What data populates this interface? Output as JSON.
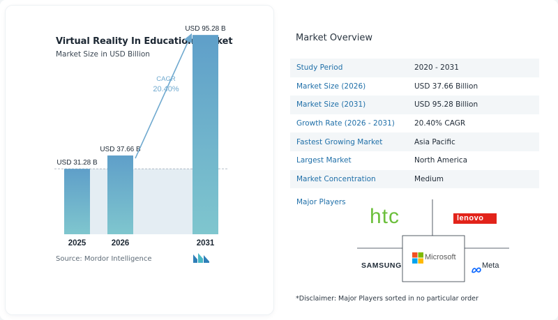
{
  "chart_data": {
    "type": "bar",
    "title": "Virtual Reality In Education Market",
    "subtitle": "Market Size in USD Billion",
    "categories": [
      "2025",
      "2026",
      "2031"
    ],
    "values": [
      31.28,
      37.66,
      95.28
    ],
    "data_labels": [
      "USD 31.28 B",
      "USD 37.66 B",
      "USD 95.28 B"
    ],
    "ylim": [
      0,
      100
    ],
    "grid": false,
    "annotation": {
      "label": "CAGR",
      "value": "20.40%"
    },
    "colors": {
      "bar_top": "#5f9fc9",
      "bar_bottom": "#7fc6ce",
      "baseline_band": "#e4edf3",
      "arrow": "#6fa9cf",
      "cagr_text": "#6fa9cf"
    }
  },
  "source": "Source:  Mordor Intelligence",
  "overview": {
    "title": "Market Overview",
    "rows": [
      {
        "label": "Study Period",
        "value": "2020 - 2031"
      },
      {
        "label": "Market Size (2026)",
        "value": "USD 37.66 Billion"
      },
      {
        "label": "Market Size (2031)",
        "value": "USD 95.28 Billion"
      },
      {
        "label": "Growth Rate (2026 - 2031)",
        "value": "20.40% CAGR"
      },
      {
        "label": "Fastest Growing Market",
        "value": "Asia Pacific"
      },
      {
        "label": "Largest Market",
        "value": "North America"
      },
      {
        "label": "Market Concentration",
        "value": "Medium"
      }
    ],
    "players_label": "Major Players",
    "players": [
      "htc",
      "lenovo",
      "SAMSUNG",
      "Microsoft",
      "Meta"
    ],
    "disclaimer": "*Disclaimer: Major Players sorted in no particular order"
  },
  "colors": {
    "accent_blue": "#1f6fa8",
    "htc_green": "#6cbf3c",
    "lenovo_red": "#e2231a"
  }
}
